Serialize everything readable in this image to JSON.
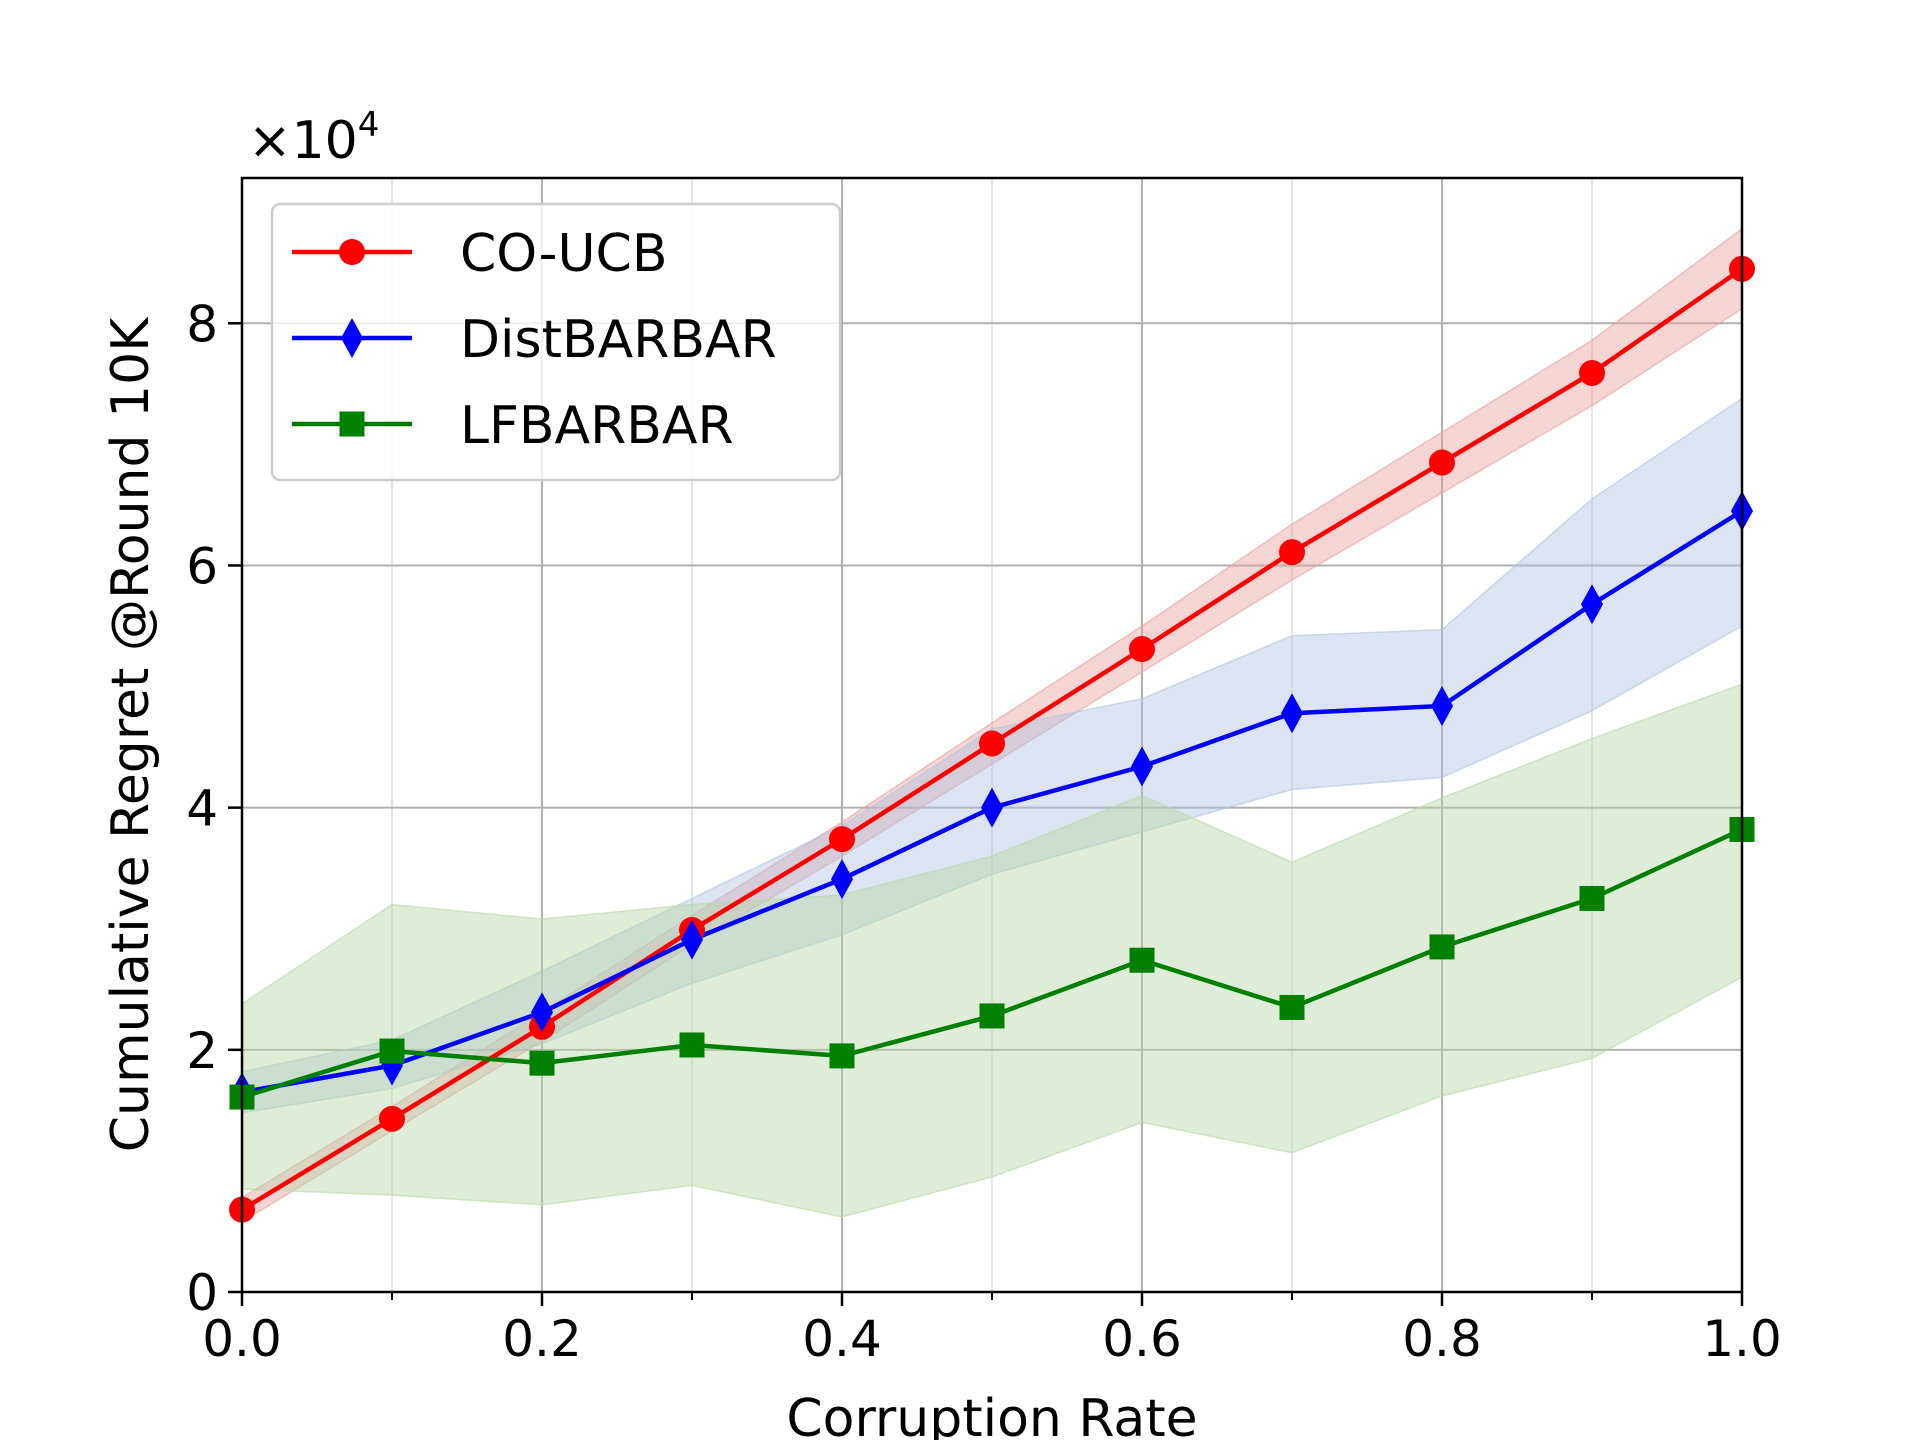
{
  "chart_data": {
    "type": "line",
    "title": "",
    "xlabel": "Corruption Rate",
    "ylabel": "Cumulative Regret @Round 10K",
    "y_scale_label": "×10",
    "y_scale_exponent": "4",
    "xlim": [
      0.0,
      1.0
    ],
    "ylim": [
      0,
      9.2
    ],
    "x_ticks": [
      0.0,
      0.2,
      0.4,
      0.6,
      0.8,
      1.0
    ],
    "x_tick_labels": [
      "0.0",
      "0.2",
      "0.4",
      "0.6",
      "0.8",
      "1.0"
    ],
    "x_minor_ticks": [
      0.1,
      0.3,
      0.5,
      0.7,
      0.9
    ],
    "y_ticks": [
      0,
      2,
      4,
      6,
      8
    ],
    "y_tick_labels": [
      "0",
      "2",
      "4",
      "6",
      "8"
    ],
    "grid": true,
    "legend_position": "top-left",
    "x": [
      0.0,
      0.1,
      0.2,
      0.3,
      0.4,
      0.5,
      0.6,
      0.7,
      0.8,
      0.9,
      1.0
    ],
    "series": [
      {
        "name": "CO-UCB",
        "color": "#ff0000",
        "band_color": "#e8a0a0",
        "marker": "circle",
        "values": [
          0.68,
          1.43,
          2.19,
          2.99,
          3.74,
          4.53,
          5.31,
          6.11,
          6.85,
          7.59,
          8.45
        ],
        "lower": [
          0.58,
          1.33,
          2.07,
          2.87,
          3.6,
          4.36,
          5.12,
          5.88,
          6.6,
          7.32,
          8.12
        ],
        "upper": [
          0.78,
          1.53,
          2.31,
          3.11,
          3.88,
          4.7,
          5.5,
          6.34,
          7.1,
          7.86,
          8.78
        ]
      },
      {
        "name": "DistBARBAR",
        "color": "#0000ff",
        "band_color": "#b0c4de",
        "marker": "diamond",
        "values": [
          1.65,
          1.87,
          2.31,
          2.91,
          3.41,
          4.0,
          4.34,
          4.78,
          4.84,
          5.68,
          6.45
        ],
        "lower": [
          1.48,
          1.68,
          2.05,
          2.55,
          2.95,
          3.45,
          3.8,
          4.15,
          4.25,
          4.8,
          5.5
        ],
        "upper": [
          1.82,
          2.08,
          2.65,
          3.25,
          3.85,
          4.65,
          4.9,
          5.42,
          5.47,
          6.55,
          7.38
        ]
      },
      {
        "name": "LFBARBAR",
        "color": "#008000",
        "band_color": "#b8d8a8",
        "marker": "square",
        "values": [
          1.61,
          1.99,
          1.89,
          2.04,
          1.95,
          2.28,
          2.74,
          2.35,
          2.85,
          3.25,
          3.82
        ],
        "lower": [
          0.85,
          0.8,
          0.72,
          0.88,
          0.62,
          0.95,
          1.4,
          1.15,
          1.62,
          1.93,
          2.6
        ],
        "upper": [
          2.38,
          3.2,
          3.08,
          3.2,
          3.28,
          3.6,
          4.1,
          3.55,
          4.08,
          4.57,
          5.02
        ]
      }
    ]
  }
}
